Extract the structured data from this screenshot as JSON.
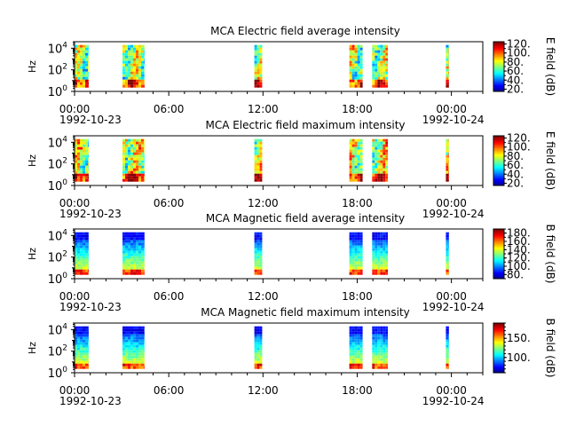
{
  "chart_data": [
    {
      "type": "heatmap",
      "title": "MCA  Electric field average intensity",
      "ylabel": "Hz",
      "yscale": "log",
      "ylim": [
        1,
        40000
      ],
      "y_ticks": [
        {
          "value": 1,
          "base": "10",
          "exp": "0"
        },
        {
          "value": 100,
          "base": "10",
          "exp": "2"
        },
        {
          "value": 10000,
          "base": "10",
          "exp": "4"
        }
      ],
      "x_ticks": [
        "00:00",
        "06:00",
        "12:00",
        "18:00",
        "00:00"
      ],
      "date_labels": [
        "1992-10-23",
        "1992-10-24"
      ],
      "colorbar_label": "E field (dB)",
      "colorbar_range": [
        15,
        125
      ],
      "colorbar_ticks": [
        "20.",
        "40.",
        "60.",
        "80.",
        "100.",
        "120."
      ],
      "data_intervals_hours": [
        [
          0.0,
          0.9
        ],
        [
          3.05,
          4.45
        ],
        [
          11.45,
          11.95
        ],
        [
          17.5,
          18.35
        ],
        [
          18.95,
          19.95
        ],
        [
          23.65,
          23.85
        ]
      ]
    },
    {
      "type": "heatmap",
      "title": "MCA  Electric field maximum intensity",
      "ylabel": "Hz",
      "yscale": "log",
      "ylim": [
        1,
        40000
      ],
      "y_ticks": [
        {
          "value": 1,
          "base": "10",
          "exp": "0"
        },
        {
          "value": 100,
          "base": "10",
          "exp": "2"
        },
        {
          "value": 10000,
          "base": "10",
          "exp": "4"
        }
      ],
      "x_ticks": [
        "00:00",
        "06:00",
        "12:00",
        "18:00",
        "00:00"
      ],
      "date_labels": [
        "1992-10-23",
        "1992-10-24"
      ],
      "colorbar_label": "E field (dB)",
      "colorbar_range": [
        15,
        125
      ],
      "colorbar_ticks": [
        "20.",
        "40.",
        "60.",
        "80.",
        "100.",
        "120."
      ],
      "data_intervals_hours": [
        [
          0.0,
          0.9
        ],
        [
          3.05,
          4.45
        ],
        [
          11.45,
          11.95
        ],
        [
          17.5,
          18.35
        ],
        [
          18.95,
          19.95
        ],
        [
          23.65,
          23.85
        ]
      ]
    },
    {
      "type": "heatmap",
      "title": "MCA  Magnetic field average intensity",
      "ylabel": "Hz",
      "yscale": "log",
      "ylim": [
        1,
        40000
      ],
      "y_ticks": [
        {
          "value": 1,
          "base": "10",
          "exp": "0"
        },
        {
          "value": 100,
          "base": "10",
          "exp": "2"
        },
        {
          "value": 10000,
          "base": "10",
          "exp": "4"
        }
      ],
      "x_ticks": [
        "00:00",
        "06:00",
        "12:00",
        "18:00",
        "00:00"
      ],
      "date_labels": [
        "1992-10-23",
        "1992-10-24"
      ],
      "colorbar_label": "B field (dB)",
      "colorbar_range": [
        70,
        190
      ],
      "colorbar_ticks": [
        "80.",
        "100.",
        "120.",
        "140.",
        "160.",
        "180."
      ],
      "data_intervals_hours": [
        [
          0.0,
          0.9
        ],
        [
          3.05,
          4.45
        ],
        [
          11.45,
          11.95
        ],
        [
          17.5,
          18.35
        ],
        [
          18.95,
          19.95
        ],
        [
          23.65,
          23.85
        ]
      ]
    },
    {
      "type": "heatmap",
      "title": "MCA  Magnetic field maximum intensity",
      "ylabel": "Hz",
      "yscale": "log",
      "ylim": [
        1,
        40000
      ],
      "y_ticks": [
        {
          "value": 1,
          "base": "10",
          "exp": "0"
        },
        {
          "value": 100,
          "base": "10",
          "exp": "2"
        },
        {
          "value": 10000,
          "base": "10",
          "exp": "4"
        }
      ],
      "x_ticks": [
        "00:00",
        "06:00",
        "12:00",
        "18:00",
        "00:00"
      ],
      "date_labels": [
        "1992-10-23",
        "1992-10-24"
      ],
      "colorbar_label": "B field (dB)",
      "colorbar_range": [
        60,
        190
      ],
      "colorbar_ticks": [
        "100.",
        "150."
      ],
      "data_intervals_hours": [
        [
          0.0,
          0.9
        ],
        [
          3.05,
          4.45
        ],
        [
          11.45,
          11.95
        ],
        [
          17.5,
          18.35
        ],
        [
          18.95,
          19.95
        ],
        [
          23.65,
          23.85
        ]
      ]
    }
  ]
}
